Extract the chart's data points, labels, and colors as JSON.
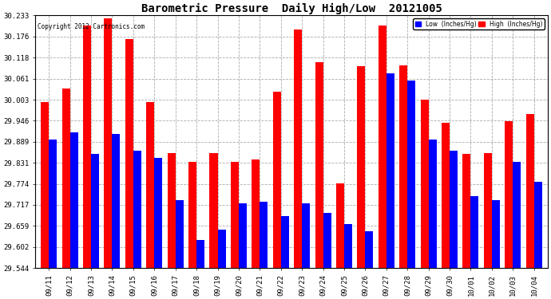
{
  "title": "Barometric Pressure  Daily High/Low  20121005",
  "copyright": "Copyright 2012 Cartronics.com",
  "legend_low": "Low  (Inches/Hg)",
  "legend_high": "High  (Inches/Hg)",
  "dates": [
    "09/11",
    "09/12",
    "09/13",
    "09/14",
    "09/15",
    "09/16",
    "09/17",
    "09/18",
    "09/19",
    "09/20",
    "09/21",
    "09/22",
    "09/23",
    "09/24",
    "09/25",
    "09/26",
    "09/27",
    "09/28",
    "09/29",
    "09/30",
    "10/01",
    "10/02",
    "10/03",
    "10/04"
  ],
  "low": [
    29.895,
    29.915,
    29.855,
    29.91,
    29.865,
    29.845,
    29.73,
    29.62,
    29.65,
    29.72,
    29.725,
    29.685,
    29.72,
    29.695,
    29.665,
    29.645,
    30.075,
    30.055,
    29.895,
    29.865,
    29.74,
    29.73,
    29.835,
    29.78
  ],
  "high": [
    29.998,
    30.035,
    30.205,
    30.225,
    30.168,
    29.998,
    29.858,
    29.835,
    29.858,
    29.835,
    29.84,
    30.025,
    30.195,
    30.105,
    29.775,
    30.095,
    30.205,
    30.098,
    30.003,
    29.94,
    29.855,
    29.858,
    29.945,
    29.965
  ],
  "ylim_min": 29.544,
  "ylim_max": 30.233,
  "yticks": [
    29.544,
    29.602,
    29.659,
    29.717,
    29.774,
    29.831,
    29.889,
    29.946,
    30.003,
    30.061,
    30.118,
    30.176,
    30.233
  ],
  "low_color": "#0000ff",
  "high_color": "#ff0000",
  "bg_color": "#ffffff",
  "grid_color": "#888888",
  "bar_width": 0.38,
  "title_fontsize": 10,
  "tick_fontsize": 6.5
}
